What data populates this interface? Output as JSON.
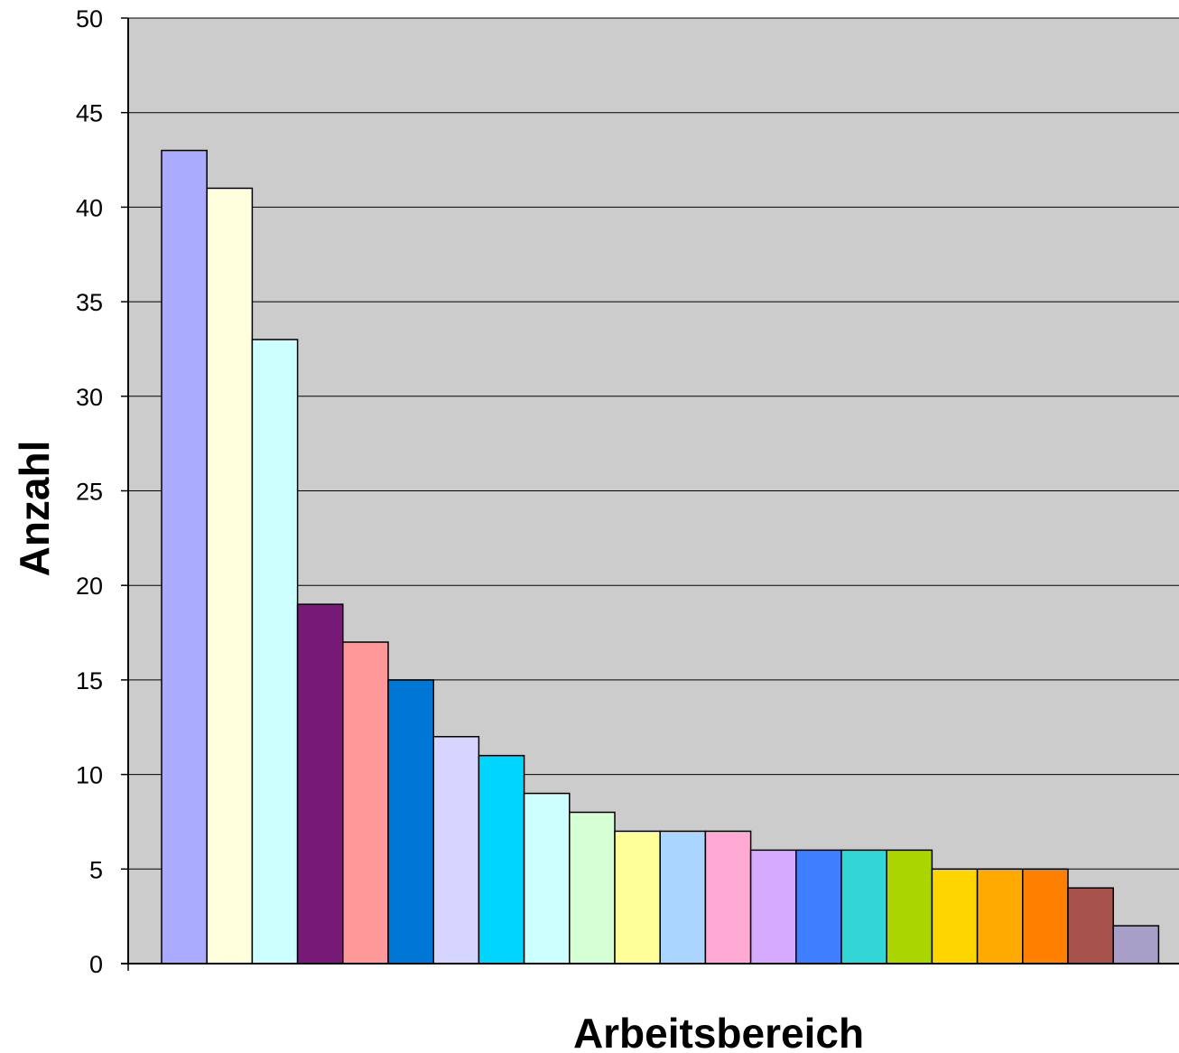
{
  "chart_data": {
    "type": "bar",
    "title": "",
    "xlabel": "Arbeitsbereich",
    "ylabel": "Anzahl",
    "ylim": [
      0,
      50
    ],
    "yticks": [
      0,
      5,
      10,
      15,
      20,
      25,
      30,
      35,
      40,
      45,
      50
    ],
    "grid": true,
    "legend": "none",
    "plot_background": "#cccccc",
    "values": [
      43,
      41,
      33,
      19,
      17,
      15,
      12,
      11,
      9,
      8,
      7,
      7,
      7,
      6,
      6,
      6,
      6,
      5,
      5,
      5,
      4,
      2
    ],
    "colors": [
      "#aaaaff",
      "#ffffdd",
      "#ccffff",
      "#771a77",
      "#ff9898",
      "#0077d5",
      "#d5d5ff",
      "#00d5ff",
      "#ccffff",
      "#d5ffd5",
      "#ffff99",
      "#aad5ff",
      "#ffaad5",
      "#d5aaff",
      "#3f7fff",
      "#33d5d5",
      "#aad500",
      "#ffd500",
      "#ffaa00",
      "#ff7f00",
      "#a8524c",
      "#a89fc8"
    ]
  }
}
